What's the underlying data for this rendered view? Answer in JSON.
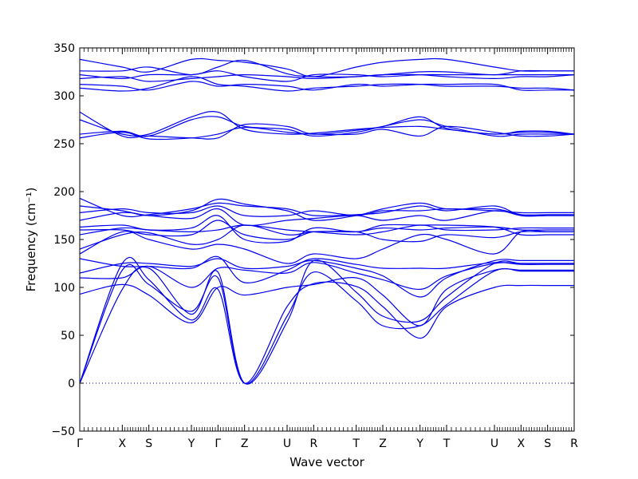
{
  "chart_data": {
    "type": "line",
    "title": "",
    "xlabel": "Wave vector",
    "ylabel": "Frequency (cm⁻¹)",
    "ylim": [
      -50,
      350
    ],
    "yticks": [
      -50,
      0,
      50,
      100,
      150,
      200,
      250,
      300,
      350
    ],
    "xlim": [
      0,
      18
    ],
    "high_symmetry_points": [
      {
        "label": "Γ",
        "x": 0
      },
      {
        "label": "X",
        "x": 1.6
      },
      {
        "label": "S",
        "x": 2.6
      },
      {
        "label": "Y",
        "x": 4.2
      },
      {
        "label": "Γ",
        "x": 5.2
      },
      {
        "label": "Z",
        "x": 6.2
      },
      {
        "label": "U",
        "x": 7.8
      },
      {
        "label": "R",
        "x": 8.8
      },
      {
        "label": "T",
        "x": 10.4
      },
      {
        "label": "Z",
        "x": 11.4
      },
      {
        "label": "Y",
        "x": 12.8
      },
      {
        "label": "T",
        "x": 13.8
      },
      {
        "label": "U",
        "x": 15.6
      },
      {
        "label": "X",
        "x": 16.6
      },
      {
        "label": "S",
        "x": 17.6
      },
      {
        "label": "R",
        "x": 18.6
      }
    ],
    "zero_line": {
      "y": 0,
      "style": "dotted"
    },
    "grid": false,
    "line_color": "#0000ee",
    "series": [
      {
        "values": [
          0,
          118,
          103,
          75,
          110,
          0,
          70,
          116,
          86,
          60,
          60,
          82,
          117,
          117,
          117,
          117
        ]
      },
      {
        "values": [
          0,
          98,
          120,
          72,
          116,
          0,
          64,
          128,
          95,
          70,
          65,
          90,
          125,
          125,
          125,
          125
        ]
      },
      {
        "values": [
          0,
          125,
          108,
          66,
          98,
          0,
          80,
          104,
          101,
          80,
          47,
          80,
          100,
          102,
          102,
          102
        ]
      },
      {
        "values": [
          93,
          103,
          92,
          63,
          100,
          92,
          100,
          103,
          110,
          92,
          60,
          98,
          118,
          118,
          118,
          118
        ]
      },
      {
        "values": [
          110,
          110,
          122,
          100,
          120,
          118,
          115,
          126,
          115,
          108,
          98,
          112,
          125,
          125,
          125,
          125
        ]
      },
      {
        "values": [
          115,
          125,
          125,
          122,
          130,
          120,
          122,
          128,
          120,
          112,
          90,
          110,
          128,
          128,
          128,
          128
        ]
      },
      {
        "values": [
          130,
          122,
          122,
          120,
          132,
          105,
          118,
          130,
          124,
          120,
          120,
          120,
          126,
          124,
          124,
          124
        ]
      },
      {
        "values": [
          135,
          158,
          150,
          140,
          145,
          140,
          125,
          135,
          130,
          140,
          155,
          150,
          135,
          158,
          158,
          158
        ]
      },
      {
        "values": [
          140,
          155,
          157,
          145,
          150,
          165,
          155,
          158,
          158,
          150,
          148,
          155,
          152,
          158,
          158,
          158
        ]
      },
      {
        "values": [
          155,
          162,
          160,
          158,
          160,
          165,
          160,
          158,
          155,
          158,
          165,
          160,
          160,
          162,
          162,
          162
        ]
      },
      {
        "values": [
          160,
          160,
          155,
          155,
          170,
          155,
          150,
          158,
          158,
          162,
          160,
          162,
          163,
          160,
          160,
          160
        ]
      },
      {
        "values": [
          163,
          165,
          160,
          162,
          175,
          150,
          148,
          162,
          158,
          165,
          165,
          165,
          163,
          155,
          155,
          155
        ]
      },
      {
        "values": [
          170,
          178,
          175,
          172,
          182,
          165,
          170,
          172,
          175,
          170,
          175,
          170,
          180,
          175,
          175,
          175
        ]
      },
      {
        "values": [
          178,
          182,
          178,
          178,
          185,
          175,
          175,
          180,
          175,
          180,
          180,
          182,
          180,
          178,
          178,
          178
        ]
      },
      {
        "values": [
          185,
          180,
          175,
          180,
          192,
          187,
          180,
          170,
          175,
          182,
          188,
          182,
          182,
          176,
          176,
          176
        ]
      },
      {
        "values": [
          193,
          175,
          176,
          182,
          188,
          185,
          182,
          175,
          176,
          178,
          185,
          180,
          185,
          175,
          175,
          175
        ]
      },
      {
        "values": [
          256,
          262,
          255,
          256,
          260,
          267,
          262,
          260,
          260,
          265,
          258,
          268,
          262,
          258,
          258,
          260
        ]
      },
      {
        "values": [
          260,
          263,
          258,
          275,
          278,
          268,
          265,
          258,
          262,
          268,
          275,
          268,
          258,
          260,
          260,
          260
        ]
      },
      {
        "values": [
          275,
          260,
          260,
          278,
          283,
          265,
          260,
          261,
          265,
          267,
          268,
          265,
          260,
          262,
          262,
          260
        ]
      },
      {
        "values": [
          283,
          258,
          258,
          256,
          256,
          270,
          268,
          260,
          264,
          268,
          278,
          266,
          260,
          263,
          263,
          260
        ]
      },
      {
        "values": [
          308,
          305,
          308,
          320,
          312,
          310,
          305,
          308,
          310,
          312,
          312,
          310,
          310,
          308,
          308,
          306
        ]
      },
      {
        "values": [
          312,
          310,
          306,
          315,
          310,
          312,
          310,
          306,
          312,
          310,
          312,
          312,
          312,
          306,
          306,
          306
        ]
      },
      {
        "values": [
          318,
          320,
          315,
          318,
          320,
          322,
          320,
          318,
          320,
          322,
          322,
          320,
          318,
          320,
          320,
          322
        ]
      },
      {
        "values": [
          322,
          318,
          322,
          322,
          326,
          320,
          315,
          322,
          322,
          320,
          322,
          322,
          322,
          322,
          322,
          322
        ]
      },
      {
        "values": [
          326,
          326,
          330,
          322,
          330,
          337,
          323,
          320,
          320,
          322,
          325,
          325,
          322,
          326,
          326,
          326
        ]
      },
      {
        "values": [
          338,
          330,
          325,
          338,
          337,
          335,
          328,
          320,
          330,
          335,
          338,
          338,
          330,
          326,
          326,
          326
        ]
      }
    ]
  }
}
